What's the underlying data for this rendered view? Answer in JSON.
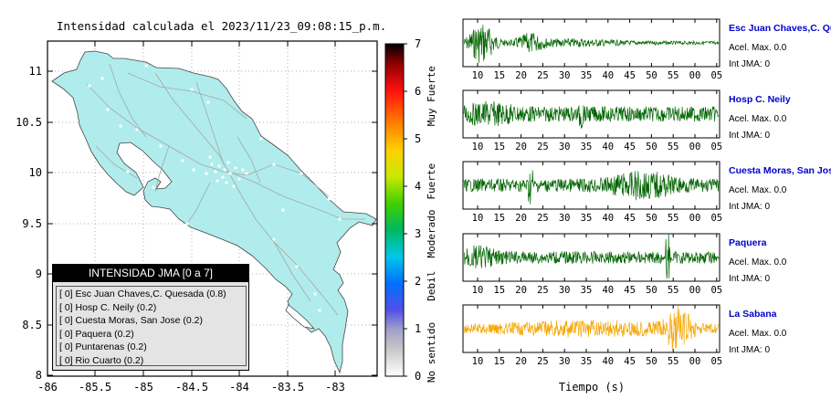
{
  "map": {
    "title": "Intensidad calculada el 2023/11/23_09:08:15_p.m.",
    "x_ticks": [
      "-86",
      "-85.5",
      "-85",
      "-84.5",
      "-84",
      "-83.5",
      "-83"
    ],
    "y_ticks": [
      "11",
      "10.5",
      "10",
      "9.5",
      "9",
      "8.5",
      "8"
    ],
    "land_color": "#b0ecec",
    "sea_color": "#ffffff"
  },
  "colorbar": {
    "ticks": [
      "0",
      "1",
      "2",
      "3",
      "4",
      "5",
      "6",
      "7"
    ],
    "labels": [
      "No sentido",
      "Debil",
      "Moderado",
      "Fuerte",
      "Muy Fuerte"
    ]
  },
  "legend": {
    "title": "INTENSIDAD JMA [0 a 7]",
    "rows": [
      "[ 0]  Esc Juan Chaves,C. Quesada (0.8)",
      "[ 0]  Hosp C. Neily (0.2)",
      "[ 0]  Cuesta Moras, San Jose (0.2)",
      "[ 0]  Paquera (0.2)",
      "[ 0]  Puntarenas (0.2)",
      "[ 0]  Rio Cuarto (0.2)"
    ]
  },
  "waveforms": {
    "x_ticks": [
      "10",
      "15",
      "20",
      "25",
      "30",
      "35",
      "40",
      "45",
      "50",
      "55",
      "00",
      "05"
    ],
    "xlabel": "Tiempo (s)",
    "stations": [
      {
        "name": "Esc Juan Chaves,C. Quesada",
        "acel": "Acel. Max. 0.0",
        "int": "Int JMA: 0",
        "color": "#006400"
      },
      {
        "name": "Hosp C. Neily",
        "acel": "Acel. Max. 0.0",
        "int": "Int JMA: 0",
        "color": "#006400"
      },
      {
        "name": "Cuesta Moras, San Jose",
        "acel": "Acel. Max. 0.0",
        "int": "Int JMA: 0",
        "color": "#006400"
      },
      {
        "name": "Paquera",
        "acel": "Acel. Max. 0.0",
        "int": "Int JMA: 0",
        "color": "#006400"
      },
      {
        "name": "La Sabana",
        "acel": "Acel. Max. 0.0",
        "int": "Int JMA: 0",
        "color": "#f5a500"
      }
    ]
  },
  "chart_data": [
    {
      "type": "heatmap",
      "title": "Intensidad calculada el 2023/11/23_09:08:15_p.m.",
      "xlim": [
        -86,
        -82.6
      ],
      "ylim": [
        8,
        11.3
      ],
      "colorbar_range": [
        0,
        7
      ],
      "colorbar_labels": [
        "No sentido",
        "Debil",
        "Moderado",
        "Fuerte",
        "Muy Fuerte"
      ],
      "values": "uniform 0 (No sentido) over land"
    },
    {
      "type": "line",
      "xlabel": "Tiempo (s)",
      "x_tick_labels": [
        "10",
        "15",
        "20",
        "25",
        "30",
        "35",
        "40",
        "45",
        "50",
        "55",
        "00",
        "05"
      ],
      "series": [
        {
          "name": "Esc Juan Chaves,C. Quesada",
          "peak_acceleration": 0.0,
          "jma_intensity": 0
        },
        {
          "name": "Hosp C. Neily",
          "peak_acceleration": 0.0,
          "jma_intensity": 0
        },
        {
          "name": "Cuesta Moras, San Jose",
          "peak_acceleration": 0.0,
          "jma_intensity": 0
        },
        {
          "name": "Paquera",
          "peak_acceleration": 0.0,
          "jma_intensity": 0
        },
        {
          "name": "La Sabana",
          "peak_acceleration": 0.0,
          "jma_intensity": 0
        }
      ]
    }
  ]
}
